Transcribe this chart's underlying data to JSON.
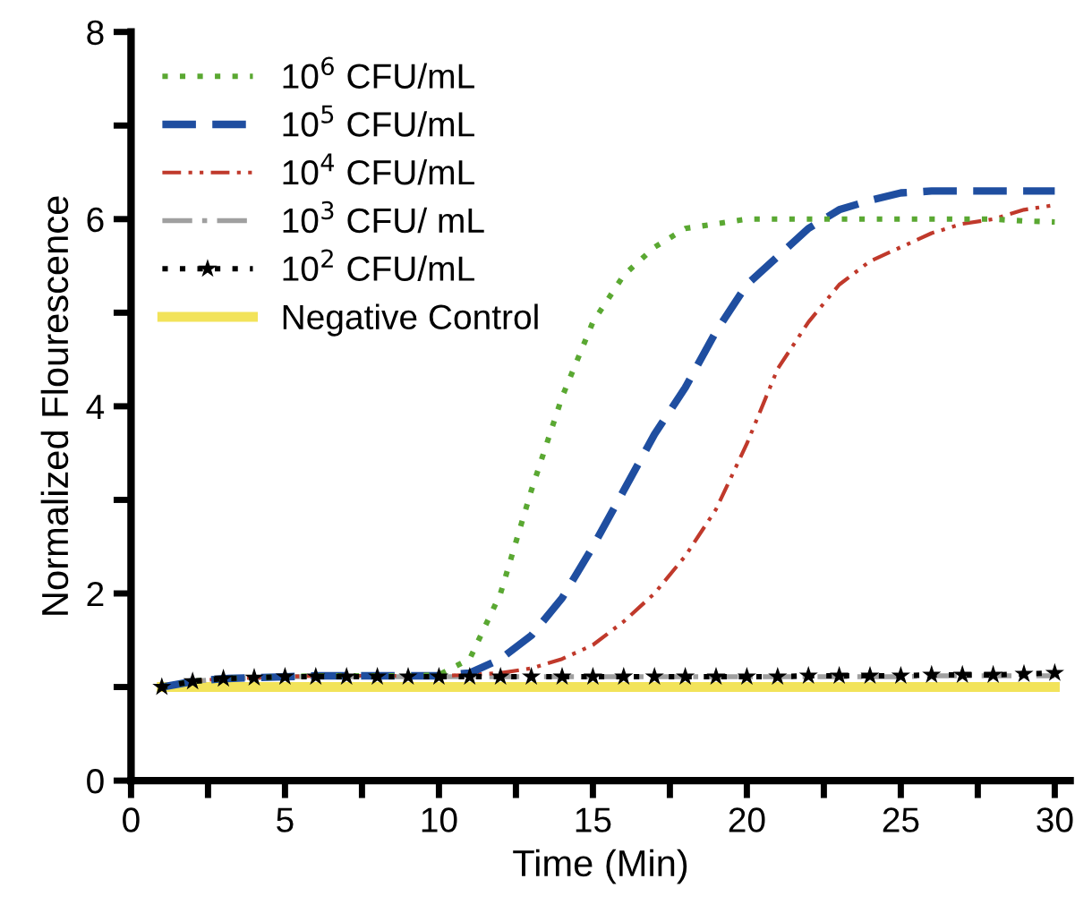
{
  "chart_data": {
    "type": "line",
    "xlabel": "Time (Min)",
    "ylabel": "Normalized Flourescence",
    "x": [
      1,
      2,
      3,
      4,
      5,
      6,
      7,
      8,
      9,
      10,
      11,
      12,
      13,
      14,
      15,
      16,
      17,
      18,
      19,
      20,
      21,
      22,
      23,
      24,
      25,
      26,
      27,
      28,
      29,
      30
    ],
    "xlim": [
      0,
      30.5
    ],
    "xticks": [
      0,
      {
        "value": 2.5,
        "label": null
      },
      5,
      {
        "value": 7.5,
        "label": null
      },
      10,
      {
        "value": 12.5,
        "label": null
      },
      15,
      {
        "value": 17.5,
        "label": null
      },
      20,
      {
        "value": 22.5,
        "label": null
      },
      25,
      {
        "value": 27.5,
        "label": null
      },
      30
    ],
    "ylim": [
      0,
      8
    ],
    "yticks": [
      0,
      {
        "value": 1,
        "label": null
      },
      2,
      {
        "value": 3,
        "label": null
      },
      4,
      {
        "value": 5,
        "label": null
      },
      6,
      {
        "value": 7,
        "label": null
      },
      8
    ],
    "grid": false,
    "legend": "top left",
    "series": [
      {
        "name": "10$^{6}$ CFU/mL",
        "color": "#5aa832",
        "line_style": "dotted",
        "marker": "none",
        "values": [
          1.0,
          1.06,
          1.09,
          1.1,
          1.11,
          1.12,
          1.12,
          1.12,
          1.12,
          1.13,
          1.3,
          2.0,
          3.1,
          4.1,
          4.9,
          5.4,
          5.7,
          5.9,
          5.95,
          6.0,
          6.0,
          6.0,
          6.0,
          6.0,
          6.0,
          6.0,
          6.0,
          6.0,
          5.98,
          5.97
        ]
      },
      {
        "name": "10$^{5}$ CFU/mL",
        "color": "#1f4ea0",
        "line_style": "dashed",
        "marker": "none",
        "values": [
          1.0,
          1.06,
          1.09,
          1.1,
          1.11,
          1.12,
          1.12,
          1.12,
          1.12,
          1.12,
          1.15,
          1.3,
          1.55,
          1.95,
          2.5,
          3.1,
          3.7,
          4.2,
          4.8,
          5.3,
          5.6,
          5.9,
          6.1,
          6.2,
          6.28,
          6.3,
          6.3,
          6.3,
          6.3,
          6.3
        ]
      },
      {
        "name": "10$^{4}$ CFU/mL",
        "color": "#c0392b",
        "line_style": "dashdotdot",
        "marker": "none",
        "values": [
          1.0,
          1.06,
          1.09,
          1.1,
          1.11,
          1.12,
          1.12,
          1.12,
          1.12,
          1.12,
          1.13,
          1.15,
          1.2,
          1.3,
          1.45,
          1.7,
          2.0,
          2.4,
          2.9,
          3.6,
          4.4,
          4.9,
          5.3,
          5.55,
          5.7,
          5.85,
          5.95,
          6.0,
          6.1,
          6.15
        ]
      },
      {
        "name": "10$^{3}$ CFU/ mL",
        "color": "#a0a0a0",
        "line_style": "dashdot",
        "marker": "none",
        "values": [
          1.0,
          1.06,
          1.09,
          1.1,
          1.11,
          1.11,
          1.11,
          1.11,
          1.11,
          1.11,
          1.11,
          1.11,
          1.11,
          1.11,
          1.11,
          1.11,
          1.11,
          1.11,
          1.11,
          1.11,
          1.11,
          1.11,
          1.11,
          1.11,
          1.11,
          1.12,
          1.12,
          1.12,
          1.12,
          1.12
        ]
      },
      {
        "name": "10$^{2}$ CFU/mL",
        "color": "#000000",
        "line_style": "dotted",
        "marker": "star",
        "values": [
          1.0,
          1.06,
          1.09,
          1.1,
          1.11,
          1.11,
          1.11,
          1.11,
          1.11,
          1.11,
          1.11,
          1.11,
          1.11,
          1.11,
          1.11,
          1.11,
          1.11,
          1.11,
          1.11,
          1.11,
          1.11,
          1.12,
          1.12,
          1.12,
          1.12,
          1.13,
          1.13,
          1.13,
          1.14,
          1.15
        ]
      },
      {
        "name": "Negative Control",
        "color": "#f2e35a",
        "line_style": "solid",
        "marker": "none",
        "values": [
          1.0,
          1.0,
          1.0,
          1.0,
          1.0,
          1.0,
          1.0,
          1.0,
          1.0,
          1.0,
          1.0,
          1.0,
          1.0,
          1.0,
          1.0,
          1.0,
          1.0,
          1.0,
          1.0,
          1.0,
          1.0,
          1.0,
          1.0,
          1.0,
          1.0,
          1.0,
          1.0,
          1.0,
          1.0,
          1.0
        ]
      }
    ]
  }
}
